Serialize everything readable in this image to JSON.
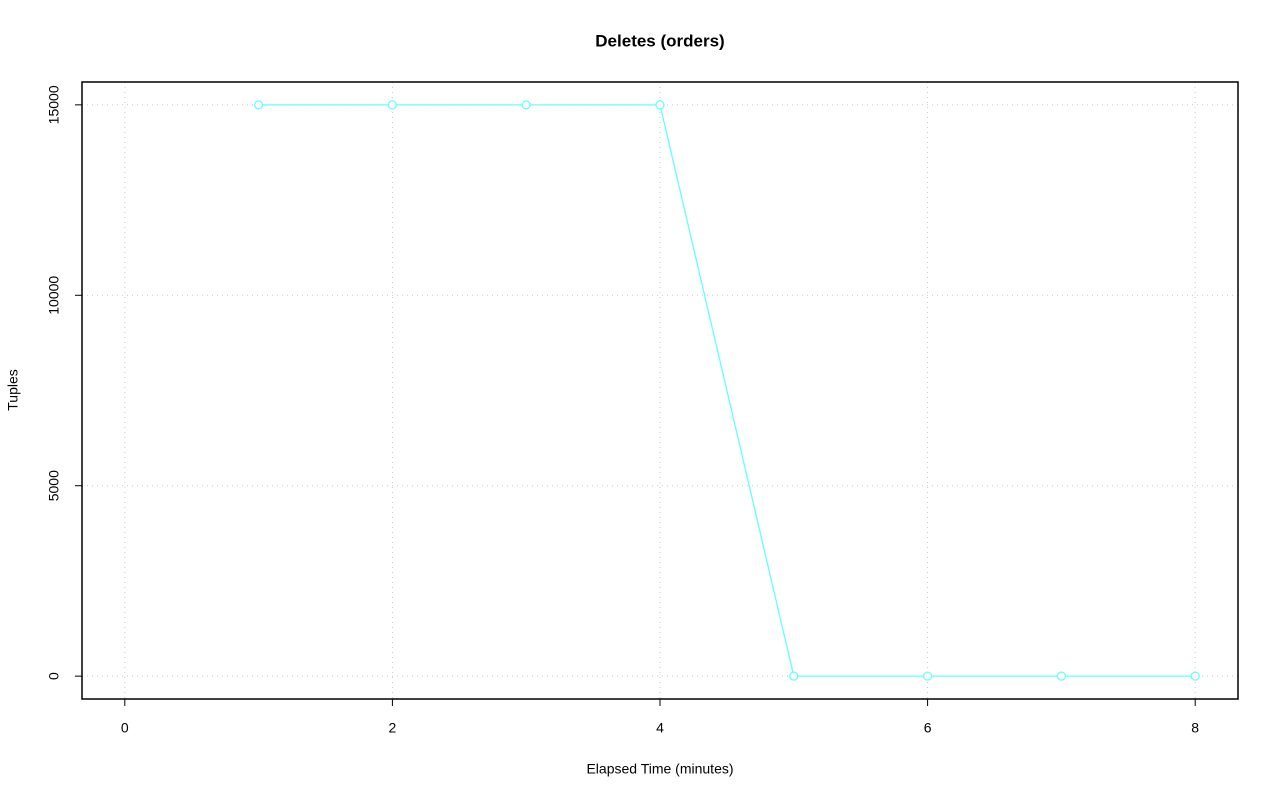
{
  "chart_data": {
    "type": "line",
    "title": "Deletes (orders)",
    "x_label": "Elapsed Time (minutes)",
    "y_label": "Tuples",
    "x": [
      1,
      2,
      3,
      4,
      5,
      6,
      7,
      8
    ],
    "series": [
      {
        "name": "orders",
        "color": "#66ffff",
        "values": [
          15000,
          15000,
          15000,
          15000,
          0,
          0,
          0,
          0
        ]
      }
    ],
    "xlim": [
      -0.32,
      8.32
    ],
    "xticks": [
      0,
      2,
      4,
      6,
      8
    ],
    "ylim": [
      -600,
      15600
    ],
    "yticks": [
      0,
      5000,
      10000,
      15000
    ],
    "grid": true,
    "legend": false
  }
}
